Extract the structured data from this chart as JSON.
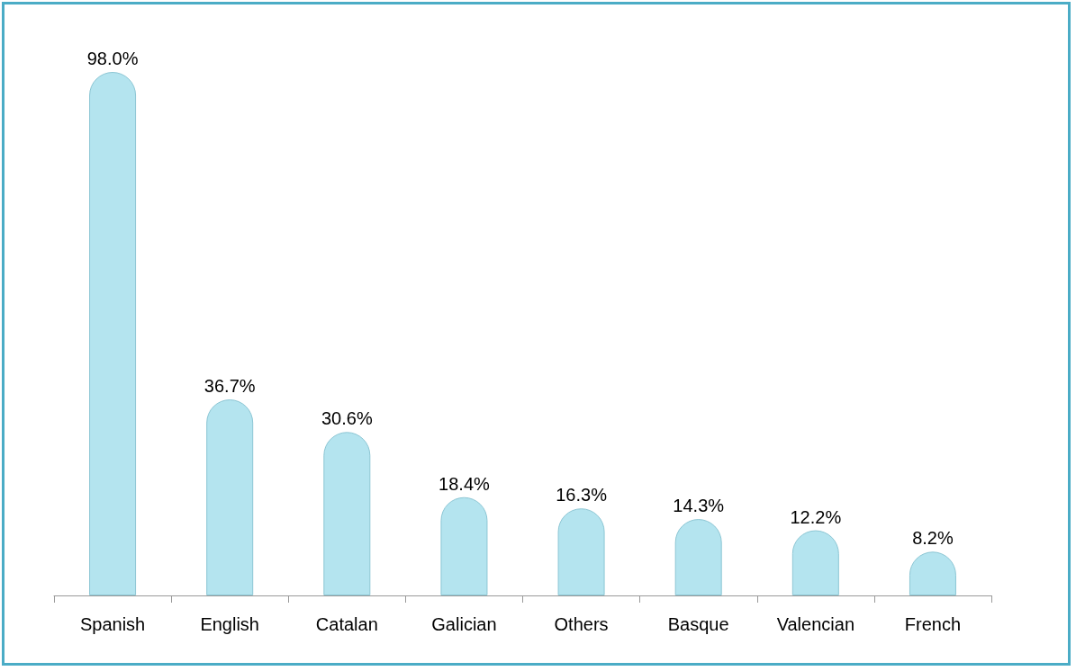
{
  "chart_data": {
    "type": "bar",
    "categories": [
      "Spanish",
      "English",
      "Catalan",
      "Galician",
      "Others",
      "Basque",
      "Valencian",
      "French"
    ],
    "values": [
      98.0,
      36.7,
      30.6,
      18.4,
      16.3,
      14.3,
      12.2,
      8.2
    ],
    "value_labels": [
      "98.0%",
      "36.7%",
      "30.6%",
      "18.4%",
      "16.3%",
      "14.3%",
      "12.2%",
      "8.2%"
    ],
    "color": "#b4e4ef"
  }
}
